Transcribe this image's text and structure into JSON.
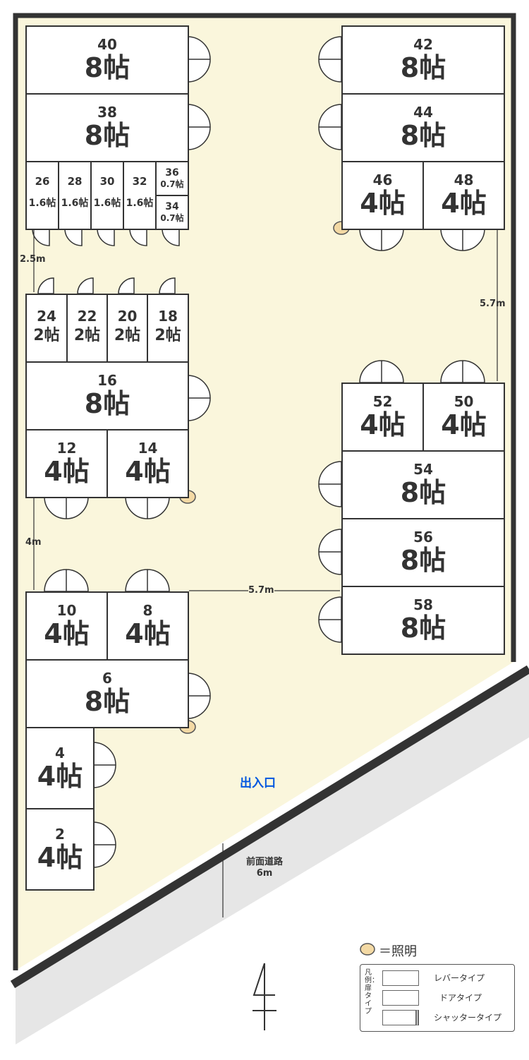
{
  "units": [
    {
      "no": "40",
      "size": "8帖"
    },
    {
      "no": "38",
      "size": "8帖"
    },
    {
      "no": "26",
      "size": "1.6帖"
    },
    {
      "no": "28",
      "size": "1.6帖"
    },
    {
      "no": "30",
      "size": "1.6帖"
    },
    {
      "no": "32",
      "size": "1.6帖"
    },
    {
      "no": "36",
      "size": "0.7帖"
    },
    {
      "no": "34",
      "size": "0.7帖"
    },
    {
      "no": "24",
      "size": "2帖"
    },
    {
      "no": "22",
      "size": "2帖"
    },
    {
      "no": "20",
      "size": "2帖"
    },
    {
      "no": "18",
      "size": "2帖"
    },
    {
      "no": "16",
      "size": "8帖"
    },
    {
      "no": "12",
      "size": "4帖"
    },
    {
      "no": "14",
      "size": "4帖"
    },
    {
      "no": "10",
      "size": "4帖"
    },
    {
      "no": "8",
      "size": "4帖"
    },
    {
      "no": "6",
      "size": "8帖"
    },
    {
      "no": "4",
      "size": "4帖"
    },
    {
      "no": "2",
      "size": "4帖"
    },
    {
      "no": "42",
      "size": "8帖"
    },
    {
      "no": "44",
      "size": "8帖"
    },
    {
      "no": "46",
      "size": "4帖"
    },
    {
      "no": "48",
      "size": "4帖"
    },
    {
      "no": "52",
      "size": "4帖"
    },
    {
      "no": "50",
      "size": "4帖"
    },
    {
      "no": "54",
      "size": "8帖"
    },
    {
      "no": "56",
      "size": "8帖"
    },
    {
      "no": "58",
      "size": "8帖"
    }
  ],
  "dimensions": {
    "gap_top_left": "2.5m",
    "gap_mid_left": "4m",
    "gap_right": "5.7m",
    "gap_center": "5.7m"
  },
  "entrance": "出入口",
  "road": {
    "label": "前面道路",
    "width": "6m"
  },
  "legend": {
    "light": "＝照明",
    "title": "凡例：扉タイプ",
    "lever": "レバータイプ",
    "door": "ドアタイプ",
    "shutter": "シャッタータイプ"
  },
  "colors": {
    "ground": "#faf6dc",
    "road": "#e6e6e6",
    "wall": "#333333",
    "light": "#f3d9a4",
    "entrance": "#0057e0"
  }
}
